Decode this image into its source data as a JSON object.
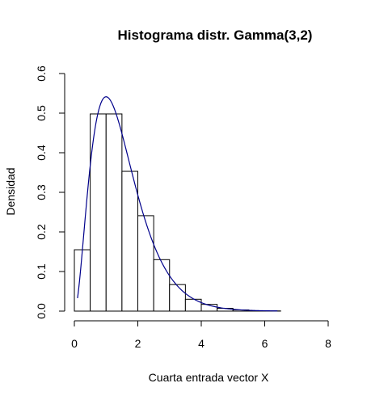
{
  "chart_data": {
    "type": "bar",
    "title": "Histograma distr. Gamma(3,2)",
    "xlabel": "Cuarta entrada vector X",
    "ylabel": "Densidad",
    "xlim": [
      0,
      8.5
    ],
    "ylim": [
      0,
      0.6
    ],
    "x_ticks": [
      "0",
      "2",
      "4",
      "6",
      "8"
    ],
    "x_tick_values": [
      0,
      2,
      4,
      6,
      8
    ],
    "y_ticks": [
      "0.0",
      "0.1",
      "0.2",
      "0.3",
      "0.4",
      "0.5",
      "0.6"
    ],
    "y_tick_values": [
      0,
      0.1,
      0.2,
      0.3,
      0.4,
      0.5,
      0.6
    ],
    "bins": [
      {
        "x0": 0.0,
        "x1": 0.5,
        "density": 0.155
      },
      {
        "x0": 0.5,
        "x1": 1.0,
        "density": 0.498
      },
      {
        "x0": 1.0,
        "x1": 1.5,
        "density": 0.498
      },
      {
        "x0": 1.5,
        "x1": 2.0,
        "density": 0.353
      },
      {
        "x0": 2.0,
        "x1": 2.5,
        "density": 0.241
      },
      {
        "x0": 2.5,
        "x1": 3.0,
        "density": 0.13
      },
      {
        "x0": 3.0,
        "x1": 3.5,
        "density": 0.067
      },
      {
        "x0": 3.5,
        "x1": 4.0,
        "density": 0.03
      },
      {
        "x0": 4.0,
        "x1": 4.5,
        "density": 0.017
      },
      {
        "x0": 4.5,
        "x1": 5.0,
        "density": 0.007
      },
      {
        "x0": 5.0,
        "x1": 5.5,
        "density": 0.003
      },
      {
        "x0": 5.5,
        "x1": 6.0,
        "density": 0.001
      },
      {
        "x0": 6.0,
        "x1": 6.5,
        "density": 0.0005
      }
    ],
    "curve": {
      "shape": 3,
      "rate": 2,
      "x_range": [
        0.1,
        6.4
      ],
      "color": "#00008B"
    }
  }
}
